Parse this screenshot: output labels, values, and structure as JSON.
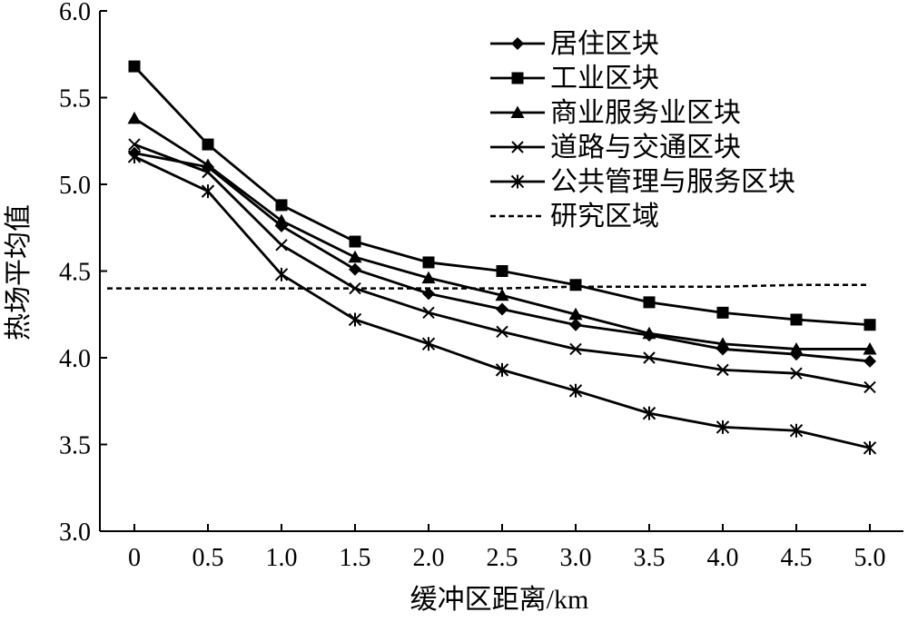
{
  "chart_data": {
    "type": "line",
    "xlabel": "缓冲区距离/km",
    "ylabel": "热场平均值",
    "x": [
      0,
      0.5,
      1.0,
      1.5,
      2.0,
      2.5,
      3.0,
      3.5,
      4.0,
      4.5,
      5.0
    ],
    "x_tick_labels": [
      "0",
      "0.5",
      "1.0",
      "1.5",
      "2.0",
      "2.5",
      "3.0",
      "3.5",
      "4.0",
      "4.5",
      "5.0"
    ],
    "ylim": [
      3.0,
      6.0
    ],
    "y_ticks": [
      3.0,
      3.5,
      4.0,
      4.5,
      5.0,
      5.5,
      6.0
    ],
    "y_tick_labels": [
      "3.0",
      "3.5",
      "4.0",
      "4.5",
      "5.0",
      "5.5",
      "6.0"
    ],
    "grid": false,
    "legend_position": "top-right",
    "series": [
      {
        "name": "居住区块",
        "marker": "diamond",
        "dash": "solid",
        "color": "#000000",
        "values": [
          5.18,
          5.1,
          4.76,
          4.51,
          4.37,
          4.28,
          4.19,
          4.13,
          4.05,
          4.02,
          3.98
        ]
      },
      {
        "name": "工业区块",
        "marker": "square",
        "dash": "solid",
        "color": "#000000",
        "values": [
          5.68,
          5.23,
          4.88,
          4.67,
          4.55,
          4.5,
          4.42,
          4.32,
          4.26,
          4.22,
          4.19
        ]
      },
      {
        "name": "商业服务业区块",
        "marker": "triangle",
        "dash": "solid",
        "color": "#000000",
        "values": [
          5.38,
          5.11,
          4.79,
          4.58,
          4.46,
          4.36,
          4.25,
          4.14,
          4.08,
          4.05,
          4.05
        ]
      },
      {
        "name": "道路与交通区块",
        "marker": "x",
        "dash": "solid",
        "color": "#000000",
        "values": [
          5.23,
          5.07,
          4.65,
          4.4,
          4.26,
          4.15,
          4.05,
          4.0,
          3.93,
          3.91,
          3.83
        ]
      },
      {
        "name": "公共管理与服务区块",
        "marker": "asterisk",
        "dash": "solid",
        "color": "#000000",
        "values": [
          5.16,
          4.96,
          4.48,
          4.22,
          4.08,
          3.93,
          3.81,
          3.68,
          3.6,
          3.58,
          3.48
        ]
      },
      {
        "name": "研究区域",
        "marker": "none",
        "dash": "dashed",
        "color": "#000000",
        "values": [
          4.4,
          4.4,
          4.4,
          4.4,
          4.4,
          4.4,
          4.41,
          4.41,
          4.41,
          4.42,
          4.42
        ]
      }
    ]
  }
}
